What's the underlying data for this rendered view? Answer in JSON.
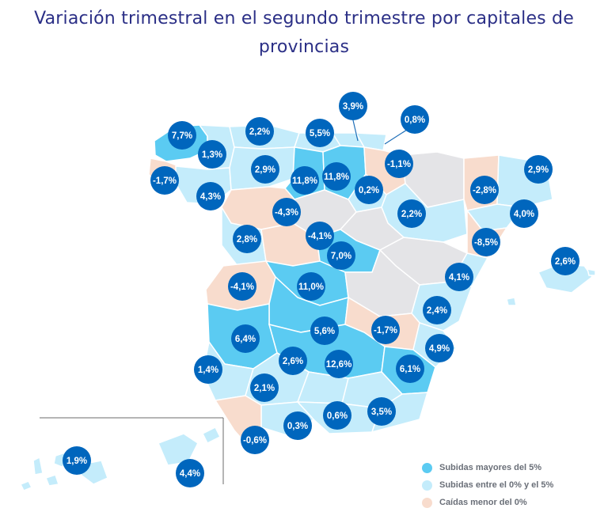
{
  "title": {
    "line1": "Variación trimestral en el segundo trimestre por capitales de",
    "line2": "provincias"
  },
  "colors": {
    "above5": "#5bcbf2",
    "between0and5": "#c4ecfb",
    "below0": "#f8dccd",
    "nodata": "#e4e4e7",
    "badge": "#0066bd",
    "title": "#2b2f86"
  },
  "markers": [
    {
      "id": "a-coruna",
      "value": "7,7%"
    },
    {
      "id": "lugo",
      "value": "1,3%"
    },
    {
      "id": "pontevedra",
      "value": "-1,7%"
    },
    {
      "id": "ourense",
      "value": "4,3%"
    },
    {
      "id": "oviedo",
      "value": "2,2%"
    },
    {
      "id": "santander",
      "value": "5,5%"
    },
    {
      "id": "leon",
      "value": "2,9%"
    },
    {
      "id": "bilbao",
      "value": "3,9%"
    },
    {
      "id": "san-sebastian",
      "value": "0,8%"
    },
    {
      "id": "burgos",
      "value": "11,8%"
    },
    {
      "id": "vitoria",
      "value": "11,8%"
    },
    {
      "id": "pamplona",
      "value": "-1,1%"
    },
    {
      "id": "logrono",
      "value": "0,2%"
    },
    {
      "id": "huesca",
      "value": "2,9%"
    },
    {
      "id": "lleida",
      "value": "-2,8%"
    },
    {
      "id": "girona",
      "value": "4,0%"
    },
    {
      "id": "zamora",
      "value": "-4,3%"
    },
    {
      "id": "zaragoza",
      "value": "2,2%"
    },
    {
      "id": "valladolid",
      "value": "-4,1%"
    },
    {
      "id": "salamanca",
      "value": "2,8%"
    },
    {
      "id": "tarragona",
      "value": "-8,5%"
    },
    {
      "id": "palma",
      "value": "2,6%"
    },
    {
      "id": "guadalajara",
      "value": "7,0%"
    },
    {
      "id": "caceres",
      "value": "-4,1%"
    },
    {
      "id": "madrid",
      "value": "11,0%"
    },
    {
      "id": "castellon",
      "value": "4,1%"
    },
    {
      "id": "valencia",
      "value": "2,4%"
    },
    {
      "id": "toledo",
      "value": "5,6%"
    },
    {
      "id": "cuenca",
      "value": "-1,7%"
    },
    {
      "id": "badajoz",
      "value": "6,4%"
    },
    {
      "id": "alicante",
      "value": "4,9%"
    },
    {
      "id": "cordoba",
      "value": "2,6%"
    },
    {
      "id": "ciudad-real",
      "value": "12,6%"
    },
    {
      "id": "murcia",
      "value": "6,1%"
    },
    {
      "id": "huelva",
      "value": "1,4%"
    },
    {
      "id": "sevilla",
      "value": "2,1%"
    },
    {
      "id": "almeria",
      "value": "3,5%"
    },
    {
      "id": "granada",
      "value": "0,6%"
    },
    {
      "id": "malaga",
      "value": "0,3%"
    },
    {
      "id": "cadiz",
      "value": "-0,6%"
    },
    {
      "id": "tenerife",
      "value": "1,9%"
    },
    {
      "id": "las-palmas",
      "value": "4,4%"
    }
  ],
  "legend": [
    {
      "label": "Subidas mayores del 5%",
      "color": "#5bcbf2"
    },
    {
      "label": "Subidas entre el 0% y el 5%",
      "color": "#c4ecfb"
    },
    {
      "label": "Caídas menor del 0%",
      "color": "#f8dccd"
    }
  ]
}
